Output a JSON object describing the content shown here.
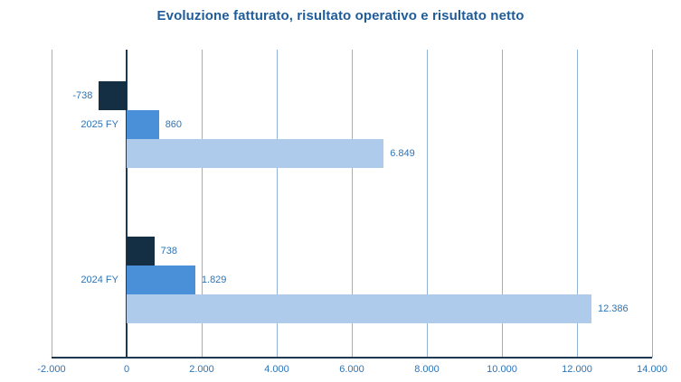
{
  "title": "Evoluzione fatturato, risultato operativo e risultato netto",
  "colors": {
    "title_text": "#1F5C99",
    "label_text": "#2E74B5",
    "gridline": "#8FB2D6",
    "axis_line": "#1E3A52",
    "series_netto": "#142E44",
    "series_operativo": "#4A90D8",
    "series_fatturato": "#AECBEC",
    "background": "#FFFFFF"
  },
  "chart_data": {
    "type": "bar",
    "orientation": "horizontal",
    "title": "Evoluzione fatturato, risultato operativo e risultato netto",
    "categories": [
      "2025 FY",
      "2024 FY"
    ],
    "series": [
      {
        "name": "risultato netto",
        "color": "#142E44",
        "values": [
          -738,
          738
        ],
        "labels": [
          "-738",
          "738"
        ]
      },
      {
        "name": "risultato operativo",
        "color": "#4A90D8",
        "values": [
          860,
          1829
        ],
        "labels": [
          "860",
          "1.829"
        ]
      },
      {
        "name": "fatturato",
        "color": "#AECBEC",
        "values": [
          6849,
          12386
        ],
        "labels": [
          "6.849",
          "12.386"
        ]
      }
    ],
    "xlim": [
      -2000,
      14000
    ],
    "x_tick_values": [
      -2000,
      0,
      2000,
      4000,
      6000,
      8000,
      10000,
      12000,
      14000
    ],
    "x_tick_labels": [
      "-2.000",
      "0",
      "2.000",
      "4.000",
      "6.000",
      "8.000",
      "10.000",
      "12.000",
      "14.000"
    ],
    "grid": "vertical",
    "legend": "none",
    "xlabel": "",
    "ylabel": ""
  }
}
